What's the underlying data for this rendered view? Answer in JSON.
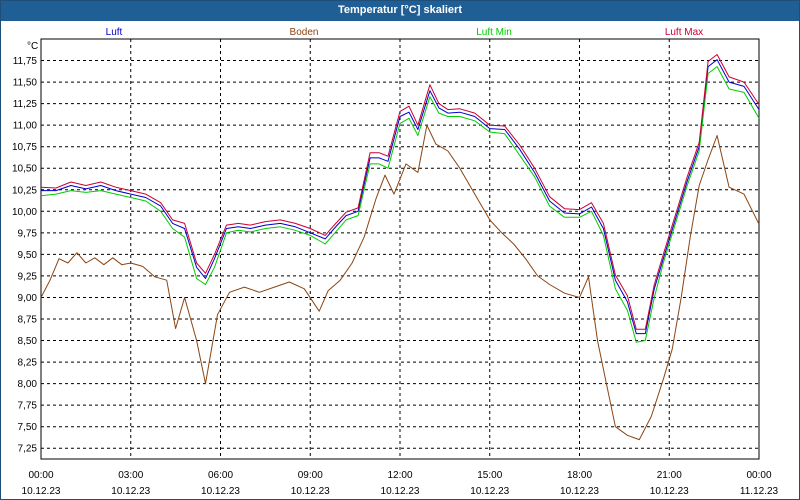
{
  "window": {
    "title": "Temperatur [°C] skaliert"
  },
  "chart_data": {
    "type": "line",
    "title": "Temperatur [°C] skaliert",
    "ylabel": "°C",
    "xlabel": "",
    "x_hours": [
      0,
      24
    ],
    "ylim": [
      7.125,
      12.0
    ],
    "grid": true,
    "y_ticks": [
      "7,25",
      "7,50",
      "7,75",
      "8,00",
      "8,25",
      "8,50",
      "8,75",
      "9,00",
      "9,25",
      "9,50",
      "9,75",
      "10,00",
      "10,25",
      "10,50",
      "10,75",
      "11,00",
      "11,25",
      "11,50",
      "11,75"
    ],
    "y_tick_values": [
      7.25,
      7.5,
      7.75,
      8.0,
      8.25,
      8.5,
      8.75,
      9.0,
      9.25,
      9.5,
      9.75,
      10.0,
      10.25,
      10.5,
      10.75,
      11.0,
      11.25,
      11.5,
      11.75
    ],
    "x_ticks": [
      {
        "time": "00:00",
        "date": "10.12.23",
        "hour": 0
      },
      {
        "time": "03:00",
        "date": "10.12.23",
        "hour": 3
      },
      {
        "time": "06:00",
        "date": "10.12.23",
        "hour": 6
      },
      {
        "time": "09:00",
        "date": "10.12.23",
        "hour": 9
      },
      {
        "time": "12:00",
        "date": "10.12.23",
        "hour": 12
      },
      {
        "time": "15:00",
        "date": "10.12.23",
        "hour": 15
      },
      {
        "time": "18:00",
        "date": "10.12.23",
        "hour": 18
      },
      {
        "time": "21:00",
        "date": "10.12.23",
        "hour": 21
      },
      {
        "time": "00:00",
        "date": "11.12.23",
        "hour": 24
      }
    ],
    "series": [
      {
        "name": "Luft",
        "color": "#0000cc",
        "points": [
          [
            0,
            10.24
          ],
          [
            0.5,
            10.24
          ],
          [
            1,
            10.3
          ],
          [
            1.5,
            10.26
          ],
          [
            2,
            10.3
          ],
          [
            2.5,
            10.24
          ],
          [
            3,
            10.2
          ],
          [
            3.5,
            10.16
          ],
          [
            4,
            10.06
          ],
          [
            4.4,
            9.86
          ],
          [
            4.8,
            9.8
          ],
          [
            5.2,
            9.35
          ],
          [
            5.5,
            9.22
          ],
          [
            5.8,
            9.45
          ],
          [
            6.2,
            9.8
          ],
          [
            6.6,
            9.82
          ],
          [
            7,
            9.8
          ],
          [
            7.5,
            9.84
          ],
          [
            8,
            9.86
          ],
          [
            8.5,
            9.82
          ],
          [
            9,
            9.75
          ],
          [
            9.5,
            9.68
          ],
          [
            9.8,
            9.8
          ],
          [
            10.2,
            9.95
          ],
          [
            10.6,
            10.0
          ],
          [
            11,
            10.62
          ],
          [
            11.3,
            10.62
          ],
          [
            11.6,
            10.58
          ],
          [
            12,
            11.1
          ],
          [
            12.3,
            11.15
          ],
          [
            12.6,
            10.95
          ],
          [
            13,
            11.4
          ],
          [
            13.3,
            11.2
          ],
          [
            13.6,
            11.14
          ],
          [
            14,
            11.15
          ],
          [
            14.5,
            11.1
          ],
          [
            15,
            10.96
          ],
          [
            15.5,
            10.95
          ],
          [
            16,
            10.72
          ],
          [
            16.5,
            10.45
          ],
          [
            17,
            10.12
          ],
          [
            17.5,
            9.98
          ],
          [
            18,
            9.97
          ],
          [
            18.4,
            10.05
          ],
          [
            18.8,
            9.8
          ],
          [
            19.2,
            9.2
          ],
          [
            19.6,
            8.95
          ],
          [
            19.9,
            8.58
          ],
          [
            20.2,
            8.58
          ],
          [
            20.5,
            9.1
          ],
          [
            20.8,
            9.45
          ],
          [
            21.2,
            9.9
          ],
          [
            21.6,
            10.35
          ],
          [
            22,
            10.75
          ],
          [
            22.3,
            11.68
          ],
          [
            22.6,
            11.76
          ],
          [
            23,
            11.5
          ],
          [
            23.5,
            11.45
          ],
          [
            24,
            11.18
          ]
        ]
      },
      {
        "name": "Boden",
        "color": "#8b4513",
        "points": [
          [
            0,
            9.0
          ],
          [
            0.3,
            9.2
          ],
          [
            0.6,
            9.45
          ],
          [
            0.9,
            9.4
          ],
          [
            1.2,
            9.52
          ],
          [
            1.5,
            9.4
          ],
          [
            1.8,
            9.46
          ],
          [
            2.1,
            9.38
          ],
          [
            2.4,
            9.46
          ],
          [
            2.7,
            9.38
          ],
          [
            3,
            9.4
          ],
          [
            3.4,
            9.36
          ],
          [
            3.8,
            9.24
          ],
          [
            4.2,
            9.2
          ],
          [
            4.5,
            8.64
          ],
          [
            4.8,
            9.0
          ],
          [
            5.2,
            8.5
          ],
          [
            5.5,
            8.0
          ],
          [
            5.9,
            8.8
          ],
          [
            6.3,
            9.06
          ],
          [
            6.8,
            9.12
          ],
          [
            7.3,
            9.06
          ],
          [
            7.8,
            9.12
          ],
          [
            8.3,
            9.18
          ],
          [
            8.8,
            9.1
          ],
          [
            9.3,
            8.84
          ],
          [
            9.6,
            9.08
          ],
          [
            10,
            9.2
          ],
          [
            10.4,
            9.4
          ],
          [
            10.8,
            9.7
          ],
          [
            11.2,
            10.15
          ],
          [
            11.5,
            10.42
          ],
          [
            11.8,
            10.2
          ],
          [
            12.2,
            10.55
          ],
          [
            12.6,
            10.45
          ],
          [
            12.9,
            11.0
          ],
          [
            13.2,
            10.78
          ],
          [
            13.6,
            10.7
          ],
          [
            14,
            10.5
          ],
          [
            14.5,
            10.2
          ],
          [
            15,
            9.9
          ],
          [
            15.4,
            9.75
          ],
          [
            15.8,
            9.62
          ],
          [
            16.2,
            9.45
          ],
          [
            16.6,
            9.25
          ],
          [
            17,
            9.15
          ],
          [
            17.5,
            9.05
          ],
          [
            18,
            9.0
          ],
          [
            18.3,
            9.24
          ],
          [
            18.6,
            8.5
          ],
          [
            18.9,
            8.0
          ],
          [
            19.2,
            7.5
          ],
          [
            19.6,
            7.4
          ],
          [
            20,
            7.35
          ],
          [
            20.4,
            7.62
          ],
          [
            20.8,
            8.05
          ],
          [
            21.1,
            8.4
          ],
          [
            21.4,
            9.0
          ],
          [
            21.7,
            9.7
          ],
          [
            22,
            10.3
          ],
          [
            22.3,
            10.6
          ],
          [
            22.6,
            10.88
          ],
          [
            23,
            10.28
          ],
          [
            23.5,
            10.2
          ],
          [
            24,
            9.85
          ]
        ]
      },
      {
        "name": "Luft Min",
        "color": "#00cc00",
        "points": [
          [
            0,
            10.18
          ],
          [
            0.5,
            10.2
          ],
          [
            1,
            10.24
          ],
          [
            1.5,
            10.22
          ],
          [
            2,
            10.24
          ],
          [
            2.5,
            10.2
          ],
          [
            3,
            10.16
          ],
          [
            3.5,
            10.12
          ],
          [
            4,
            10.0
          ],
          [
            4.4,
            9.8
          ],
          [
            4.8,
            9.7
          ],
          [
            5.2,
            9.22
          ],
          [
            5.5,
            9.15
          ],
          [
            5.8,
            9.35
          ],
          [
            6.2,
            9.75
          ],
          [
            6.6,
            9.78
          ],
          [
            7,
            9.76
          ],
          [
            7.5,
            9.8
          ],
          [
            8,
            9.82
          ],
          [
            8.5,
            9.78
          ],
          [
            9,
            9.72
          ],
          [
            9.5,
            9.62
          ],
          [
            9.8,
            9.74
          ],
          [
            10.2,
            9.9
          ],
          [
            10.6,
            9.95
          ],
          [
            11,
            10.55
          ],
          [
            11.3,
            10.55
          ],
          [
            11.6,
            10.5
          ],
          [
            12,
            11.02
          ],
          [
            12.3,
            11.08
          ],
          [
            12.6,
            10.88
          ],
          [
            13,
            11.33
          ],
          [
            13.3,
            11.14
          ],
          [
            13.6,
            11.1
          ],
          [
            14,
            11.1
          ],
          [
            14.5,
            11.05
          ],
          [
            15,
            10.92
          ],
          [
            15.5,
            10.9
          ],
          [
            16,
            10.65
          ],
          [
            16.5,
            10.4
          ],
          [
            17,
            10.06
          ],
          [
            17.5,
            9.93
          ],
          [
            18,
            9.93
          ],
          [
            18.4,
            10.0
          ],
          [
            18.8,
            9.72
          ],
          [
            19.2,
            9.1
          ],
          [
            19.6,
            8.85
          ],
          [
            19.9,
            8.48
          ],
          [
            20.2,
            8.5
          ],
          [
            20.5,
            9.0
          ],
          [
            20.8,
            9.4
          ],
          [
            21.2,
            9.85
          ],
          [
            21.6,
            10.3
          ],
          [
            22,
            10.7
          ],
          [
            22.3,
            11.6
          ],
          [
            22.6,
            11.68
          ],
          [
            23,
            11.42
          ],
          [
            23.5,
            11.38
          ],
          [
            24,
            11.08
          ]
        ]
      },
      {
        "name": "Luft Max",
        "color": "#cc0033",
        "points": [
          [
            0,
            10.28
          ],
          [
            0.5,
            10.27
          ],
          [
            1,
            10.34
          ],
          [
            1.5,
            10.3
          ],
          [
            2,
            10.34
          ],
          [
            2.5,
            10.28
          ],
          [
            3,
            10.24
          ],
          [
            3.5,
            10.2
          ],
          [
            4,
            10.1
          ],
          [
            4.4,
            9.9
          ],
          [
            4.8,
            9.86
          ],
          [
            5.2,
            9.4
          ],
          [
            5.5,
            9.28
          ],
          [
            5.8,
            9.5
          ],
          [
            6.2,
            9.84
          ],
          [
            6.6,
            9.86
          ],
          [
            7,
            9.84
          ],
          [
            7.5,
            9.88
          ],
          [
            8,
            9.9
          ],
          [
            8.5,
            9.86
          ],
          [
            9,
            9.8
          ],
          [
            9.5,
            9.72
          ],
          [
            9.8,
            9.84
          ],
          [
            10.2,
            9.99
          ],
          [
            10.6,
            10.04
          ],
          [
            11,
            10.68
          ],
          [
            11.3,
            10.68
          ],
          [
            11.6,
            10.64
          ],
          [
            12,
            11.16
          ],
          [
            12.3,
            11.22
          ],
          [
            12.6,
            11.0
          ],
          [
            13,
            11.47
          ],
          [
            13.3,
            11.25
          ],
          [
            13.6,
            11.18
          ],
          [
            14,
            11.19
          ],
          [
            14.5,
            11.14
          ],
          [
            15,
            11.0
          ],
          [
            15.5,
            10.99
          ],
          [
            16,
            10.77
          ],
          [
            16.5,
            10.5
          ],
          [
            17,
            10.17
          ],
          [
            17.5,
            10.03
          ],
          [
            18,
            10.02
          ],
          [
            18.4,
            10.1
          ],
          [
            18.8,
            9.86
          ],
          [
            19.2,
            9.26
          ],
          [
            19.6,
            9.02
          ],
          [
            19.9,
            8.63
          ],
          [
            20.2,
            8.63
          ],
          [
            20.5,
            9.15
          ],
          [
            20.8,
            9.5
          ],
          [
            21.2,
            9.95
          ],
          [
            21.6,
            10.4
          ],
          [
            22,
            10.8
          ],
          [
            22.3,
            11.74
          ],
          [
            22.6,
            11.82
          ],
          [
            23,
            11.56
          ],
          [
            23.5,
            11.5
          ],
          [
            24,
            11.24
          ]
        ]
      }
    ]
  }
}
